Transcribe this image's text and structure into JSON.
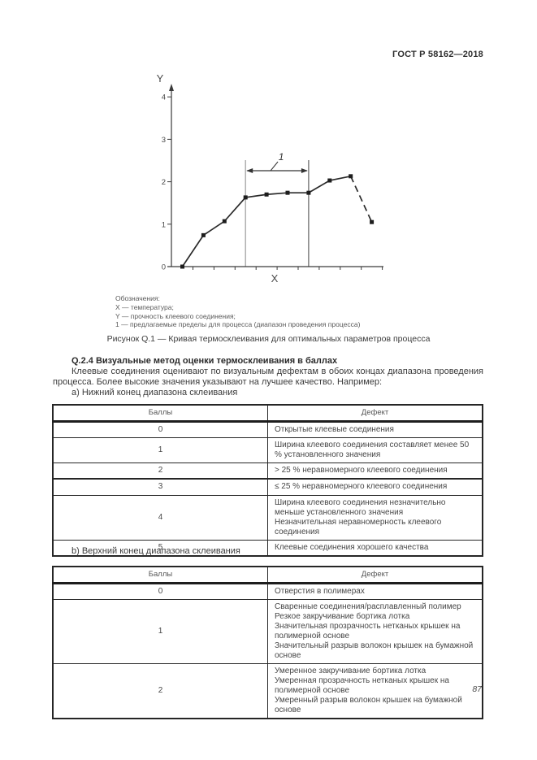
{
  "page": {
    "header_right": "ГОСТ Р 58162—2018",
    "page_number": "87"
  },
  "figure": {
    "legend_title": "Обозначения:",
    "legend_items": [
      "X — температура;",
      "Y — прочность клеевого соединения;",
      "1 — предлагаемые пределы для процесса (диапазон проведения процесса)"
    ],
    "caption": "Рисунок Q.1 — Кривая термосклеивания для оптимальных параметров процесса"
  },
  "chart_data": {
    "type": "line",
    "title": "",
    "xlabel": "X",
    "ylabel": "Y",
    "x": [
      1,
      2,
      3,
      4,
      5,
      6,
      7,
      8,
      9,
      10
    ],
    "values": [
      0,
      0.74,
      1.07,
      1.63,
      1.7,
      1.74,
      1.74,
      2.03,
      2.13,
      1.05
    ],
    "ylim": [
      0,
      4
    ],
    "y_ticks": [
      0,
      1,
      2,
      3,
      4
    ],
    "x_tick_count": 10,
    "marker": "square",
    "grid": false,
    "legend_position": "none",
    "dashed_segment_from_point": 9,
    "process_range_points": [
      4,
      7
    ],
    "range_annotation": "1"
  },
  "section": {
    "heading": "Q.2.4 Визуальные метод оценки термосклеивания в баллах",
    "paragraph": "Клеевые соединения оценивают по визуальным дефектам в обоих концах диапазона проведения процесса. Более высокие значения указывают на лучшее качество. Например:",
    "list_a": "a) Нижний конец диапазона склеивания",
    "list_b": "b) Верхний конец диапазона склеивания"
  },
  "table_a": {
    "headers": [
      "Баллы",
      "Дефект"
    ],
    "rows": [
      {
        "score": "0",
        "defect": [
          "Открытые клеевые соединения"
        ]
      },
      {
        "score": "1",
        "defect": [
          "Ширина клеевого соединения составляет менее 50 % установленного значения"
        ]
      },
      {
        "score": "2",
        "defect": [
          "> 25 % неравномерного клеевого соединения"
        ]
      },
      {
        "score": "3",
        "defect": [
          "≤ 25 % неравномерного клеевого соединения"
        ]
      },
      {
        "score": "4",
        "defect": [
          "Ширина клеевого соединения незначительно меньше установленного значения",
          "Незначительная неравномерность клеевого соединения"
        ]
      },
      {
        "score": "5",
        "defect": [
          "Клеевые соединения хорошего качества"
        ]
      }
    ]
  },
  "table_b": {
    "headers": [
      "Баллы",
      "Дефект"
    ],
    "rows": [
      {
        "score": "0",
        "defect": [
          "Отверстия в полимерах"
        ]
      },
      {
        "score": "1",
        "defect": [
          "Сваренные соединения/расплавленный полимер",
          "Резкое закручивание бортика лотка",
          "Значительная прозрачность нетканых крышек на полимерной основе",
          "Значительный разрыв волокон крышек на бумажной основе"
        ]
      },
      {
        "score": "2",
        "defect": [
          "Умеренное закручивание бортика лотка",
          "Умеренная прозрачность нетканых крышек на полимерной основе",
          "Умеренный разрыв волокон крышек на бумажной основе"
        ]
      }
    ]
  },
  "colors": {
    "curve": "#2a2a2a",
    "marker": "#1d1d1d",
    "range_line_left": "#a3a3a3",
    "range_line_right": "#6b6b6b",
    "axis": "#3a3a3a",
    "text": "#3a3a3a"
  }
}
